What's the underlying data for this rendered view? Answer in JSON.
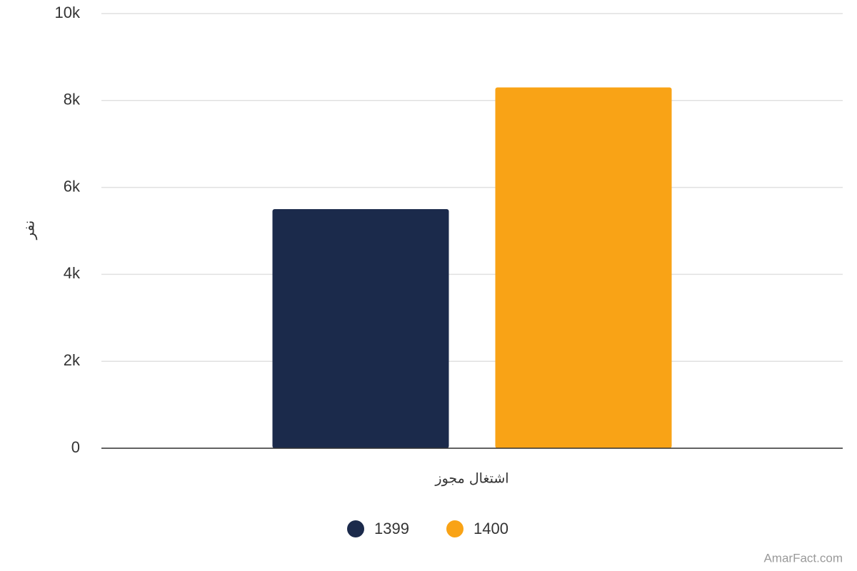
{
  "chart_data": {
    "type": "bar",
    "categories": [
      "اشتغال مجوز"
    ],
    "series": [
      {
        "name": "1399",
        "color": "#1b2a4b",
        "values": [
          5500
        ]
      },
      {
        "name": "1400",
        "color": "#f9a316",
        "values": [
          8300
        ]
      }
    ],
    "y_label": "نفر",
    "ylim": [
      0,
      10000
    ],
    "yticks": [
      0,
      {
        "value": 2000,
        "label": "2k"
      },
      {
        "value": 4000,
        "label": "4k"
      },
      {
        "value": 6000,
        "label": "6k"
      },
      {
        "value": 8000,
        "label": "8k"
      },
      {
        "value": 10000,
        "label": "10k"
      }
    ],
    "grid": true,
    "legend": "bottom",
    "credit": "AmarFact.com"
  }
}
